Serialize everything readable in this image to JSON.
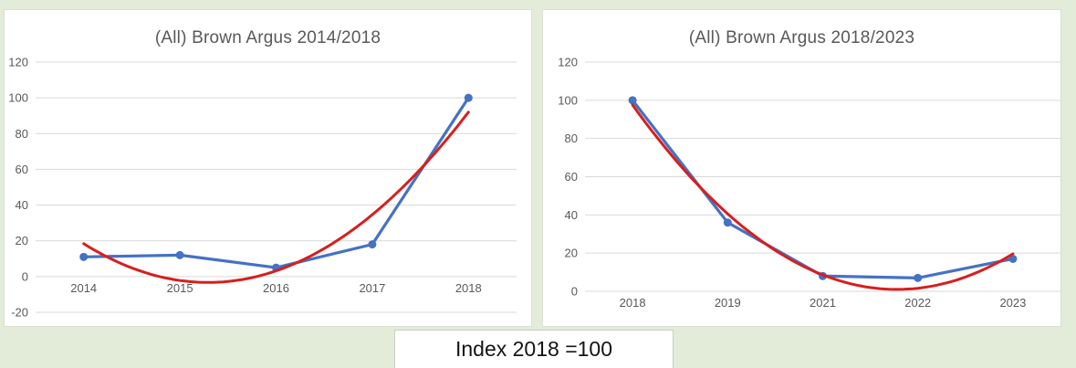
{
  "page": {
    "background_color": "#e2ecd9",
    "panel_color": "#ffffff",
    "footer_label": "Index 2018 =100"
  },
  "colors": {
    "series_blue": "#4472c4",
    "trend_red": "#d81e1e",
    "gridline": "#d9d9d9",
    "axis_text": "#595959",
    "title_text": "#595959"
  },
  "chart_data": [
    {
      "type": "line",
      "title": "(All) Brown Argus 2014/2018",
      "categories": [
        "2014",
        "2015",
        "2016",
        "2017",
        "2018"
      ],
      "yticks": [
        -20,
        0,
        20,
        40,
        60,
        80,
        100,
        120
      ],
      "ylim": [
        -20,
        120
      ],
      "grid": true,
      "legend": "none",
      "series": [
        {
          "name": "abundance-index",
          "kind": "line-markers",
          "values": [
            11,
            12,
            5,
            18,
            100
          ]
        },
        {
          "name": "poly2-trendline",
          "kind": "trend-poly2",
          "coeffs": [
            13.0,
            -33.6,
            18.4
          ]
        }
      ]
    },
    {
      "type": "line",
      "title": "(All) Brown Argus 2018/2023",
      "categories": [
        "2018",
        "2019",
        "2021",
        "2022",
        "2023"
      ],
      "yticks": [
        0,
        20,
        40,
        60,
        80,
        100,
        120
      ],
      "ylim": [
        0,
        120
      ],
      "grid": true,
      "legend": "none",
      "series": [
        {
          "name": "abundance-index",
          "kind": "line-markers",
          "values": [
            100,
            36,
            8,
            7,
            17
          ]
        },
        {
          "name": "poly2-trendline",
          "kind": "trend-poly2",
          "coeffs": [
            12.5,
            -69.5,
            97.6
          ]
        }
      ]
    }
  ]
}
